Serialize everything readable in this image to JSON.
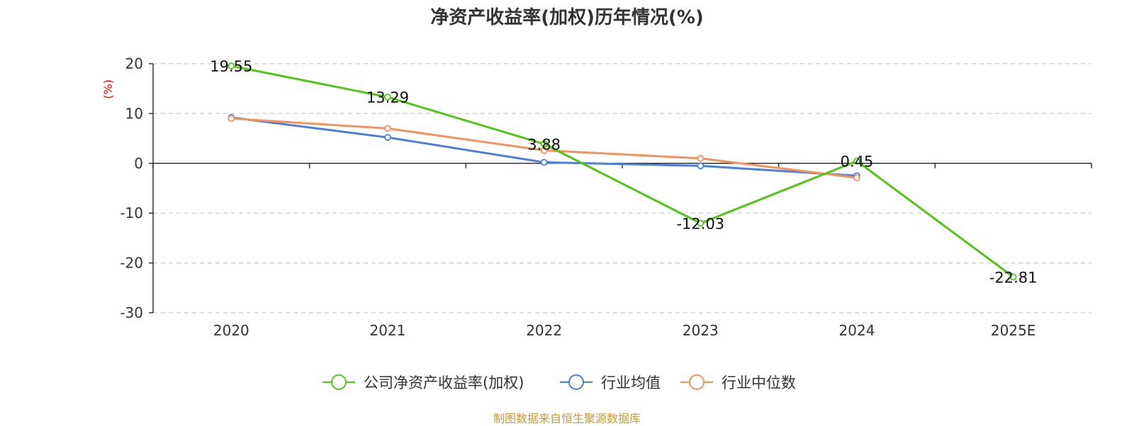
{
  "chart_data": {
    "type": "line",
    "title": "净资产收益率(加权)历年情况(%)",
    "ylabel": "(%)",
    "ylabel_color": "#ff0000",
    "categories": [
      "2020",
      "2021",
      "2022",
      "2023",
      "2024",
      "2025E"
    ],
    "ylim": [
      -30,
      20
    ],
    "yticks": [
      20,
      10,
      0,
      -10,
      -20,
      -30
    ],
    "grid": true,
    "legend_position": "bottom",
    "series": [
      {
        "name": "公司净资产收益率(加权)",
        "color": "#52c41a",
        "values": [
          19.55,
          13.29,
          3.88,
          -12.03,
          0.45,
          -22.81
        ],
        "labels": [
          "19.55",
          "13.29",
          "3.88",
          "-12.03",
          "0.45",
          "-22.81"
        ]
      },
      {
        "name": "行业均值",
        "color": "#4a7fdc",
        "values": [
          9.2,
          5.2,
          0.2,
          -0.5,
          -2.5,
          null
        ]
      },
      {
        "name": "行业中位数",
        "color": "#f5925a",
        "values": [
          9.0,
          7.0,
          2.6,
          1.0,
          -2.9,
          null
        ]
      }
    ]
  },
  "source_note": "制图数据来自恒生聚源数据库"
}
